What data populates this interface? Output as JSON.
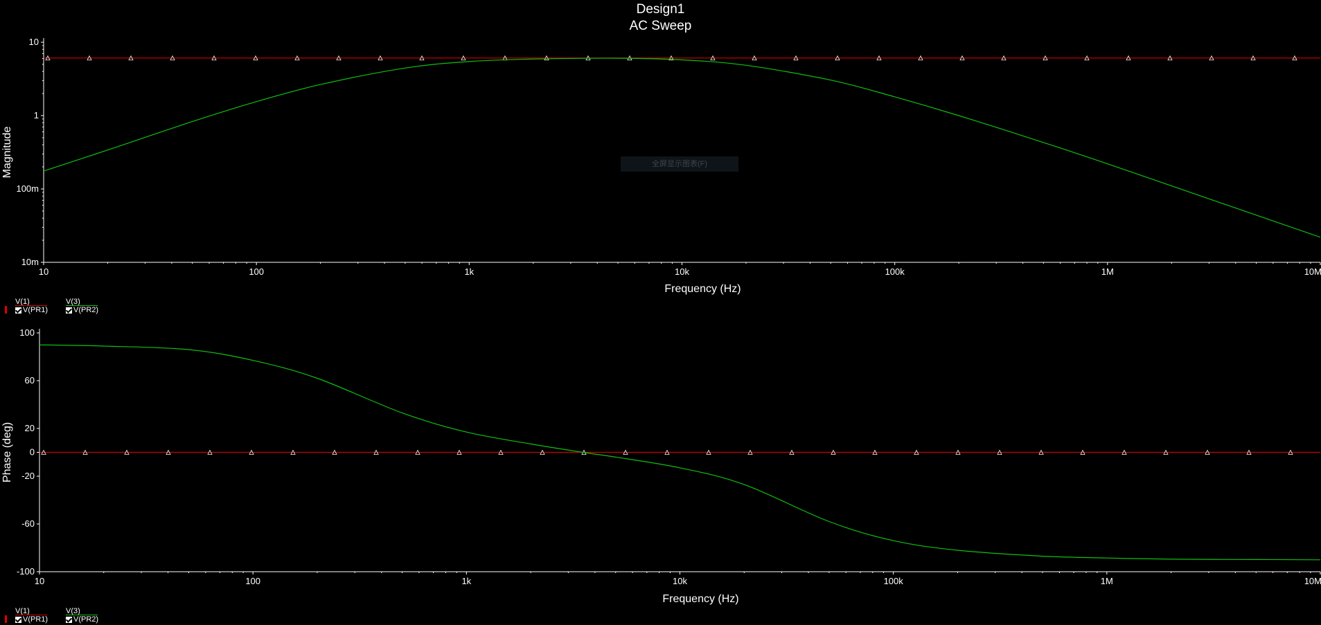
{
  "window": {
    "title": "Design1",
    "subtitle": "AC Sweep"
  },
  "colors": {
    "background": "#000000",
    "v_pr1": "#d40000",
    "v_pr2": "#10c010",
    "axis": "#ffffff"
  },
  "tooltip": {
    "text": "全屏显示图表(F)"
  },
  "chart_data": [
    {
      "type": "line",
      "xscale": "log",
      "yscale": "log",
      "xlim": [
        10,
        10000000
      ],
      "ylim": [
        0.01,
        10
      ],
      "xlabel": "Frequency (Hz)",
      "ylabel": "Magnitude",
      "xticks": [
        {
          "v": 10,
          "label": "10"
        },
        {
          "v": 100,
          "label": "100"
        },
        {
          "v": 1000,
          "label": "1k"
        },
        {
          "v": 10000,
          "label": "10k"
        },
        {
          "v": 100000,
          "label": "100k"
        },
        {
          "v": 1000000,
          "label": "1M"
        },
        {
          "v": 10000000,
          "label": "10M"
        }
      ],
      "yticks": [
        {
          "v": 10,
          "label": "10"
        },
        {
          "v": 1,
          "label": "1"
        },
        {
          "v": 0.1,
          "label": "100m"
        },
        {
          "v": 0.01,
          "label": "10m"
        }
      ],
      "legend": [
        {
          "name": "V(1)",
          "probe": "V(PR1)",
          "color": "#d40000",
          "checked": true
        },
        {
          "name": "V(3)",
          "probe": "V(PR2)",
          "color": "#10c010",
          "checked": true
        }
      ],
      "series": [
        {
          "name": "V(PR1)",
          "color": "#d40000",
          "markers": true,
          "x": [
            10,
            10000000
          ],
          "y": [
            6.1,
            6.1
          ]
        },
        {
          "name": "V(PR2)",
          "color": "#10c010",
          "markers": false,
          "x": [
            10,
            20,
            50,
            100,
            200,
            500,
            1000,
            2000,
            5000,
            10000,
            20000,
            50000,
            100000,
            200000,
            500000,
            1000000,
            2000000,
            5000000,
            10000000
          ],
          "y": [
            0.175,
            0.34,
            0.83,
            1.55,
            2.65,
            4.45,
            5.45,
            5.9,
            6.05,
            5.75,
            4.85,
            3.05,
            1.8,
            1.0,
            0.43,
            0.22,
            0.11,
            0.044,
            0.022
          ]
        }
      ]
    },
    {
      "type": "line",
      "xscale": "log",
      "yscale": "linear",
      "xlim": [
        10,
        10000000
      ],
      "ylim": [
        -100,
        100
      ],
      "xlabel": "Frequency (Hz)",
      "ylabel": "Phase (deg)",
      "xticks": [
        {
          "v": 10,
          "label": "10"
        },
        {
          "v": 100,
          "label": "100"
        },
        {
          "v": 1000,
          "label": "1k"
        },
        {
          "v": 10000,
          "label": "10k"
        },
        {
          "v": 100000,
          "label": "100k"
        },
        {
          "v": 1000000,
          "label": "1M"
        },
        {
          "v": 10000000,
          "label": "10M"
        }
      ],
      "yticks": [
        {
          "v": 100,
          "label": "100"
        },
        {
          "v": 60,
          "label": "60"
        },
        {
          "v": 20,
          "label": "20"
        },
        {
          "v": 0,
          "label": "0"
        },
        {
          "v": -20,
          "label": "-20"
        },
        {
          "v": -60,
          "label": "-60"
        },
        {
          "v": -100,
          "label": "-100"
        }
      ],
      "legend": [
        {
          "name": "V(1)",
          "probe": "V(PR1)",
          "color": "#d40000",
          "checked": true
        },
        {
          "name": "V(3)",
          "probe": "V(PR2)",
          "color": "#10c010",
          "checked": true
        }
      ],
      "series": [
        {
          "name": "V(PR1)",
          "color": "#d40000",
          "markers": true,
          "x": [
            10,
            10000000
          ],
          "y": [
            0,
            0
          ]
        },
        {
          "name": "V(PR2)",
          "color": "#10c010",
          "markers": false,
          "x": [
            10,
            20,
            50,
            100,
            200,
            500,
            1000,
            2000,
            3500,
            5000,
            10000,
            20000,
            50000,
            100000,
            200000,
            500000,
            1000000,
            2000000,
            5000000,
            10000000
          ],
          "y": [
            90,
            89,
            86,
            77,
            62,
            33,
            17,
            7,
            0,
            -4,
            -13,
            -27,
            -58,
            -74,
            -82,
            -87,
            -88.5,
            -89.5,
            -89.8,
            -90
          ]
        }
      ]
    }
  ]
}
